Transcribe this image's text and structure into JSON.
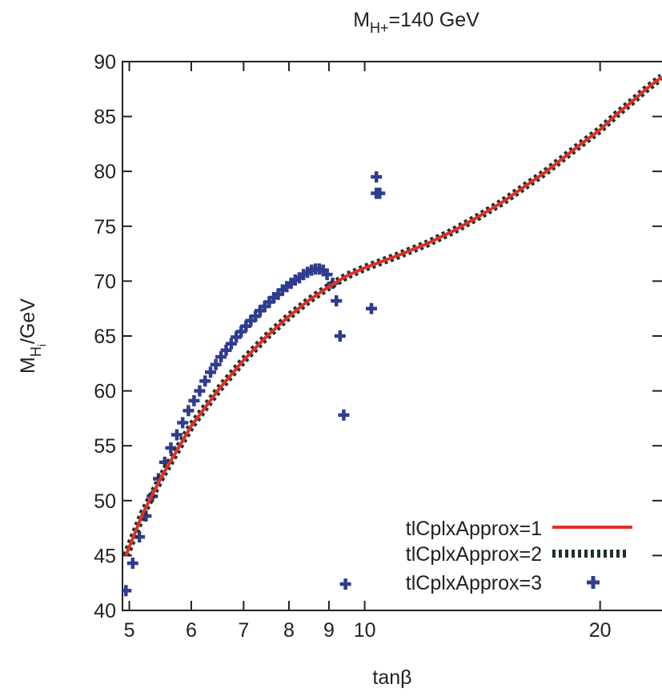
{
  "chart_data": {
    "type": "line",
    "title": "M",
    "title_sub": "H+",
    "title_tail": "=140 GeV",
    "xlabel": "tanβ",
    "ylabel_main": "M",
    "ylabel_sub": "H",
    "ylabel_subsub": "i",
    "ylabel_tail": "/GeV",
    "x_scale": "log",
    "xlim": [
      4.9,
      24
    ],
    "ylim": [
      40,
      90
    ],
    "grid": false,
    "legend_position": "bottom-right",
    "x_ticks": [
      5,
      6,
      7,
      8,
      9,
      10,
      20
    ],
    "x_tick_labels": [
      "5",
      "6",
      "7",
      "8",
      "9",
      "10",
      "20"
    ],
    "y_ticks": [
      40,
      45,
      50,
      55,
      60,
      65,
      70,
      75,
      80,
      85,
      90
    ],
    "y_tick_labels": [
      "40",
      "45",
      "50",
      "55",
      "60",
      "65",
      "70",
      "75",
      "80",
      "85",
      "90"
    ],
    "colors": {
      "series1": "#e0302a",
      "series2": "#1e3326",
      "series3": "#2f3c8f",
      "axis": "#222222"
    },
    "series": [
      {
        "name": "tlCplxApprox=1",
        "style": "solid-line",
        "x": [
          4.95,
          5.2,
          5.5,
          6.0,
          6.5,
          7.0,
          7.5,
          8.0,
          8.5,
          9.0,
          9.5,
          10.0,
          11.0,
          12.0,
          13.0,
          14.0,
          15.0,
          16.0,
          17.0,
          18.0,
          19.0,
          20.0,
          21.0,
          22.0,
          23.0,
          24.0
        ],
        "y": [
          45.0,
          48.8,
          52.2,
          56.8,
          60.1,
          62.8,
          65.0,
          66.8,
          68.3,
          69.5,
          70.5,
          71.2,
          72.3,
          73.4,
          74.6,
          75.9,
          77.2,
          78.6,
          79.9,
          81.3,
          82.6,
          83.8,
          85.2,
          86.4,
          87.6,
          88.6
        ]
      },
      {
        "name": "tlCplxApprox=2",
        "style": "dashed-line",
        "x": [
          4.95,
          5.2,
          5.5,
          6.0,
          6.5,
          7.0,
          7.5,
          8.0,
          8.5,
          9.0,
          9.5,
          10.0,
          11.0,
          12.0,
          13.0,
          14.0,
          15.0,
          16.0,
          17.0,
          18.0,
          19.0,
          20.0,
          21.0,
          22.0,
          23.0,
          24.0
        ],
        "y": [
          45.0,
          48.8,
          52.2,
          56.8,
          60.1,
          62.8,
          65.0,
          66.8,
          68.3,
          69.5,
          70.5,
          71.2,
          72.3,
          73.4,
          74.6,
          75.9,
          77.2,
          78.6,
          79.9,
          81.3,
          82.6,
          83.8,
          85.2,
          86.4,
          87.6,
          88.6
        ]
      },
      {
        "name": "tlCplxApprox=3",
        "style": "cross-markers",
        "x": [
          4.95,
          5.05,
          5.15,
          5.25,
          5.35,
          5.45,
          5.55,
          5.65,
          5.75,
          5.85,
          5.95,
          6.05,
          6.15,
          6.25,
          6.35,
          6.45,
          6.55,
          6.65,
          6.75,
          6.85,
          6.95,
          7.05,
          7.15,
          7.25,
          7.35,
          7.45,
          7.55,
          7.65,
          7.75,
          7.85,
          7.95,
          8.05,
          8.15,
          8.25,
          8.35,
          8.45,
          8.55,
          8.65,
          8.75,
          8.85,
          8.95,
          9.1,
          9.2,
          9.3,
          9.4,
          9.45,
          10.2,
          10.35,
          10.35,
          10.45
        ],
        "y": [
          41.8,
          44.3,
          46.7,
          48.6,
          50.4,
          52.0,
          53.5,
          54.8,
          56.0,
          57.1,
          58.2,
          59.1,
          60.0,
          60.9,
          61.7,
          62.4,
          63.1,
          63.7,
          64.3,
          64.9,
          65.4,
          65.9,
          66.4,
          66.8,
          67.3,
          67.7,
          68.1,
          68.5,
          68.8,
          69.2,
          69.5,
          69.8,
          70.1,
          70.3,
          70.6,
          70.8,
          71.0,
          71.1,
          71.1,
          71.0,
          70.6,
          69.8,
          68.2,
          65.0,
          57.8,
          42.4,
          67.5,
          78.0,
          79.5,
          78.0
        ]
      }
    ]
  }
}
